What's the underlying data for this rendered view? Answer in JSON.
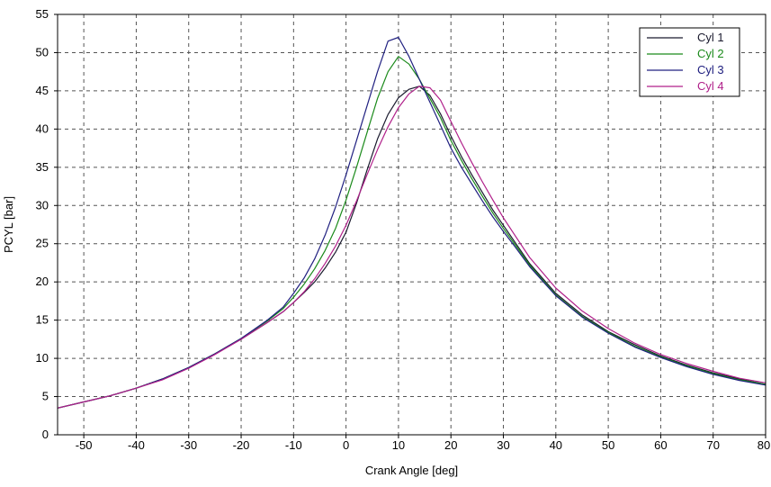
{
  "chart_data": {
    "type": "line",
    "xlabel": "Crank Angle [deg]",
    "ylabel": "PCYL [bar]",
    "xlim": [
      -55,
      80
    ],
    "ylim": [
      0,
      55
    ],
    "x_ticks": [
      -50,
      -40,
      -30,
      -20,
      -10,
      0,
      10,
      20,
      30,
      40,
      50,
      60,
      70,
      80
    ],
    "y_ticks": [
      0,
      5,
      10,
      15,
      20,
      25,
      30,
      35,
      40,
      45,
      50,
      55
    ],
    "grid": true,
    "legend_position": "top-right",
    "series": [
      {
        "name": "Cyl 1",
        "color": "#1a1a2e",
        "x": [
          -55,
          -50,
          -45,
          -40,
          -35,
          -30,
          -25,
          -20,
          -15,
          -12,
          -10,
          -8,
          -6,
          -4,
          -2,
          0,
          2,
          4,
          6,
          8,
          10,
          12,
          14,
          16,
          18,
          20,
          22,
          24,
          26,
          28,
          30,
          32,
          35,
          40,
          45,
          50,
          55,
          60,
          65,
          70,
          75,
          80
        ],
        "y": [
          3.5,
          4.3,
          5.1,
          6.1,
          7.3,
          8.8,
          10.6,
          12.5,
          14.7,
          16.1,
          17.3,
          18.6,
          20.0,
          21.8,
          23.9,
          26.5,
          30.3,
          34.6,
          38.7,
          41.9,
          44.1,
          45.2,
          45.6,
          44.4,
          42.0,
          39.1,
          36.4,
          34.0,
          31.7,
          29.4,
          27.4,
          25.4,
          22.4,
          18.5,
          15.7,
          13.5,
          11.8,
          10.3,
          9.1,
          8.1,
          7.3,
          6.6
        ]
      },
      {
        "name": "Cyl 2",
        "color": "#1a8a1a",
        "x": [
          -55,
          -50,
          -45,
          -40,
          -35,
          -30,
          -25,
          -20,
          -15,
          -12,
          -10,
          -8,
          -6,
          -4,
          -2,
          0,
          2,
          4,
          6,
          8,
          10,
          12,
          14,
          16,
          18,
          20,
          22,
          24,
          26,
          28,
          30,
          32,
          35,
          40,
          45,
          50,
          55,
          60,
          65,
          70,
          75,
          80
        ],
        "y": [
          3.5,
          4.3,
          5.1,
          6.1,
          7.3,
          8.8,
          10.6,
          12.6,
          14.9,
          16.5,
          18.0,
          19.7,
          21.7,
          24.1,
          27.0,
          30.7,
          35.0,
          39.5,
          44.0,
          47.5,
          49.5,
          48.5,
          46.5,
          44.0,
          41.5,
          38.5,
          35.9,
          33.5,
          31.2,
          29.0,
          27.0,
          25.1,
          22.2,
          18.3,
          15.5,
          13.4,
          11.6,
          10.2,
          9.0,
          8.0,
          7.2,
          6.6
        ]
      },
      {
        "name": "Cyl 3",
        "color": "#202080",
        "x": [
          -55,
          -50,
          -45,
          -40,
          -35,
          -30,
          -25,
          -20,
          -15,
          -12,
          -10,
          -8,
          -6,
          -4,
          -2,
          0,
          2,
          4,
          6,
          8,
          10,
          12,
          14,
          16,
          18,
          20,
          22,
          24,
          26,
          28,
          30,
          32,
          35,
          40,
          45,
          50,
          55,
          60,
          65,
          70,
          75,
          80
        ],
        "y": [
          3.5,
          4.3,
          5.1,
          6.1,
          7.3,
          8.8,
          10.6,
          12.6,
          15.0,
          16.7,
          18.5,
          20.5,
          23.0,
          26.1,
          29.8,
          34.0,
          38.5,
          43.0,
          47.5,
          51.5,
          52.0,
          49.5,
          46.5,
          43.5,
          40.5,
          37.5,
          35.0,
          32.8,
          30.6,
          28.5,
          26.6,
          24.8,
          22.0,
          18.2,
          15.4,
          13.3,
          11.5,
          10.1,
          8.9,
          7.9,
          7.1,
          6.5
        ]
      },
      {
        "name": "Cyl 4",
        "color": "#b0208a",
        "x": [
          -55,
          -50,
          -45,
          -40,
          -35,
          -30,
          -25,
          -20,
          -15,
          -12,
          -10,
          -8,
          -6,
          -4,
          -2,
          0,
          2,
          4,
          6,
          8,
          10,
          12,
          14,
          16,
          18,
          20,
          22,
          24,
          26,
          28,
          30,
          32,
          35,
          40,
          45,
          50,
          55,
          60,
          65,
          70,
          75,
          80
        ],
        "y": [
          3.5,
          4.3,
          5.1,
          6.1,
          7.2,
          8.7,
          10.5,
          12.5,
          14.7,
          16.1,
          17.3,
          18.7,
          20.4,
          22.4,
          24.7,
          27.4,
          30.6,
          34.0,
          37.3,
          40.3,
          42.8,
          44.6,
          45.6,
          45.4,
          43.8,
          41.0,
          38.2,
          35.6,
          33.1,
          30.7,
          28.4,
          26.3,
          23.2,
          19.2,
          16.2,
          13.9,
          12.0,
          10.5,
          9.3,
          8.3,
          7.4,
          6.8
        ]
      }
    ]
  }
}
